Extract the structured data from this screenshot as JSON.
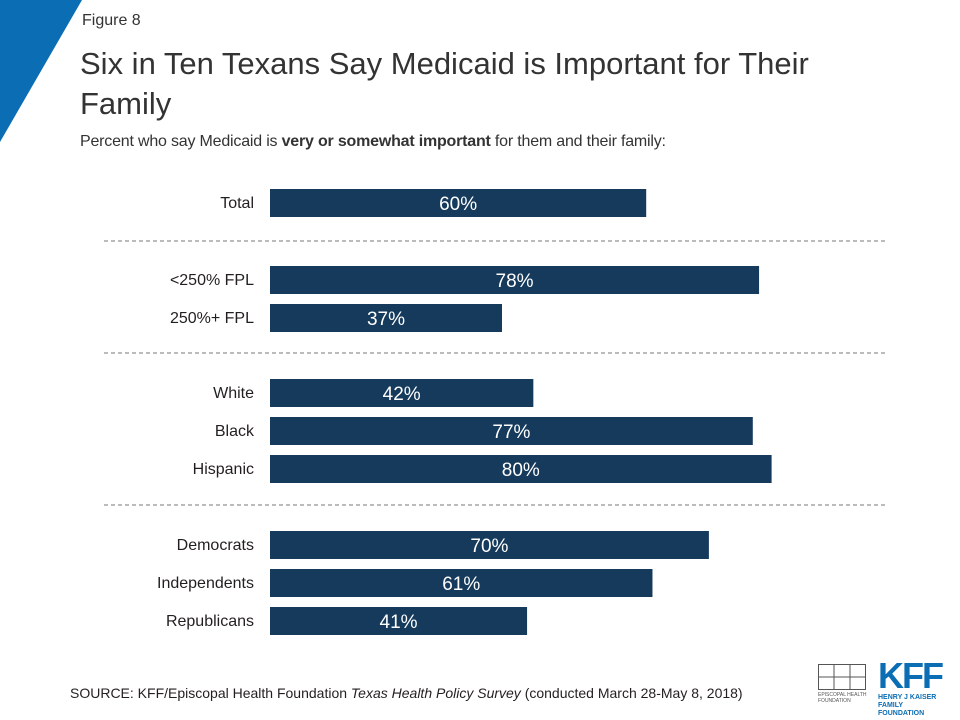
{
  "header": {
    "figure_label": "Figure 8",
    "title": "Six in Ten Texans Say Medicaid is Important for Their Family",
    "subtitle_pre": "Percent who say Medicaid is ",
    "subtitle_bold": "very or somewhat important",
    "subtitle_post": " for them and their family:"
  },
  "colors": {
    "bar": "#153a5c",
    "accent": "#0b6db3",
    "label_text": "#ffffff"
  },
  "chart_data": {
    "type": "bar",
    "orientation": "horizontal",
    "categories": [
      "Total",
      "<250% FPL",
      "250%+ FPL",
      "White",
      "Black",
      "Hispanic",
      "Democrats",
      "Independents",
      "Republicans"
    ],
    "values": [
      60,
      78,
      37,
      42,
      77,
      80,
      70,
      61,
      41
    ],
    "value_labels": [
      "60%",
      "78%",
      "37%",
      "42%",
      "77%",
      "80%",
      "70%",
      "61%",
      "41%"
    ],
    "groups": [
      [
        0
      ],
      [
        1,
        2
      ],
      [
        3,
        4,
        5
      ],
      [
        6,
        7,
        8
      ]
    ],
    "xlim": [
      0,
      100
    ],
    "grid": false,
    "legend": "none"
  },
  "footer": {
    "source_pre": "SOURCE: KFF/Episcopal Health Foundation ",
    "source_italic": "Texas Health Policy Survey",
    "source_post": " (conducted March 28-May 8, 2018)"
  },
  "logos": {
    "ehf_text": "EPISCOPAL HEALTH FOUNDATION",
    "kff_mark": "KFF",
    "kff_text": "HENRY J KAISER FAMILY FOUNDATION"
  }
}
